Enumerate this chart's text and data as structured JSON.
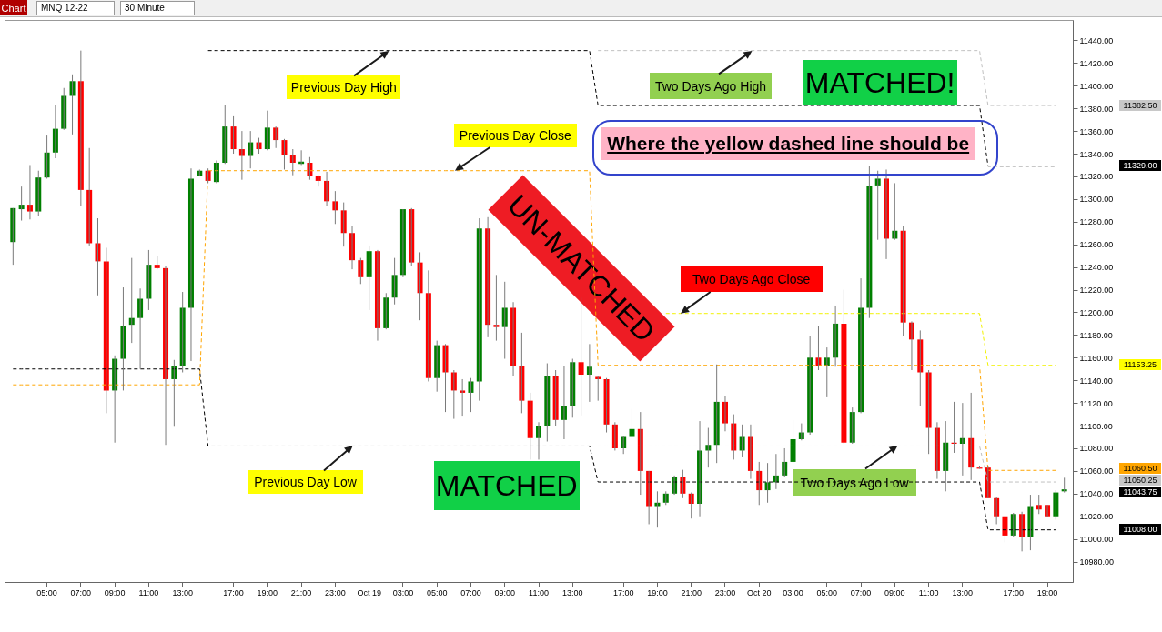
{
  "chart_data": {
    "type": "candlestick",
    "title": "MNQ 12-22",
    "subtitle": "30 Minute",
    "categories": [
      null,
      null,
      null,
      null,
      "05:00",
      null,
      null,
      null,
      "07:00",
      null,
      null,
      null,
      "09:00",
      null,
      null,
      null,
      "11:00",
      null,
      null,
      null,
      "13:00",
      null,
      null,
      null,
      null,
      null,
      "17:00",
      null,
      null,
      null,
      "19:00",
      null,
      null,
      null,
      "21:00",
      null,
      null,
      null,
      "23:00",
      null,
      null,
      null,
      "Oct 19",
      null,
      null,
      null,
      "03:00",
      null,
      null,
      null,
      "05:00",
      null,
      null,
      null,
      "07:00",
      null,
      null,
      null,
      "09:00",
      null,
      null,
      null,
      "11:00",
      null,
      null,
      null,
      "13:00",
      null,
      null,
      null,
      null,
      null,
      "17:00",
      null,
      null,
      null,
      "19:00",
      null,
      null,
      null,
      "21:00",
      null,
      null,
      null,
      "23:00",
      null,
      null,
      null,
      "Oct 20",
      null,
      null,
      null,
      "03:00",
      null,
      null,
      null,
      "05:00",
      null,
      null,
      null,
      "07:00",
      null,
      null,
      null,
      "09:00",
      null,
      null,
      null,
      "11:00",
      null,
      null,
      null,
      "13:00",
      null,
      null,
      null,
      null,
      null,
      "17:00",
      null,
      null,
      null,
      "19:00",
      null,
      null
    ],
    "ohlc": [
      [
        11262,
        11292,
        11242,
        11292
      ],
      [
        11291,
        11311,
        11281,
        11295
      ],
      [
        11295,
        11330,
        11282,
        11289
      ],
      [
        11289,
        11325,
        11285,
        11319
      ],
      [
        11319,
        11356,
        11318,
        11341
      ],
      [
        11341,
        11383,
        11336,
        11362
      ],
      [
        11362,
        11398,
        11361,
        11391
      ],
      [
        11391,
        11410,
        11357,
        11404
      ],
      [
        11404,
        11431,
        11294,
        11308
      ],
      [
        11308,
        11345,
        11259,
        11261
      ],
      [
        11261,
        11283,
        11215,
        11245
      ],
      [
        11245,
        11257,
        11111,
        11131
      ],
      [
        11131,
        11162,
        11085,
        11159
      ],
      [
        11159,
        11222,
        11131,
        11188
      ],
      [
        11189,
        11248,
        11173,
        11195
      ],
      [
        11195,
        11221,
        11150,
        11212
      ],
      [
        11212,
        11255,
        11202,
        11242
      ],
      [
        11242,
        11250,
        11238,
        11239
      ],
      [
        11239,
        11241,
        11083,
        11141
      ],
      [
        11141,
        11158,
        11099,
        11153
      ],
      [
        11153,
        11218,
        11147,
        11204
      ],
      [
        11204,
        11327,
        11157,
        11318
      ],
      [
        11320,
        11326,
        11320,
        11325
      ],
      [
        11325,
        11327,
        11314,
        11316
      ],
      [
        11315,
        11334,
        11314,
        11332
      ],
      [
        11332,
        11383,
        11331,
        11364
      ],
      [
        11364,
        11373,
        11340,
        11344
      ],
      [
        11344,
        11360,
        11317,
        11338
      ],
      [
        11338,
        11360,
        11327,
        11350
      ],
      [
        11350,
        11354,
        11340,
        11344
      ],
      [
        11344,
        11378,
        11343,
        11363
      ],
      [
        11363,
        11364,
        11345,
        11352
      ],
      [
        11352,
        11353,
        11326,
        11339
      ],
      [
        11339,
        11344,
        11321,
        11332
      ],
      [
        11331,
        11343,
        11330,
        11333
      ],
      [
        11332,
        11337,
        11317,
        11320
      ],
      [
        11320,
        11321,
        11311,
        11316
      ],
      [
        11316,
        11324,
        11294,
        11298
      ],
      [
        11298,
        11307,
        11278,
        11290
      ],
      [
        11290,
        11297,
        11258,
        11270
      ],
      [
        11270,
        11276,
        11238,
        11246
      ],
      [
        11246,
        11248,
        11225,
        11231
      ],
      [
        11231,
        11259,
        11202,
        11254
      ],
      [
        11254,
        11255,
        11175,
        11186
      ],
      [
        11186,
        11217,
        11185,
        11213
      ],
      [
        11213,
        11248,
        11207,
        11233
      ],
      [
        11233,
        11291,
        11231,
        11291
      ],
      [
        11291,
        11292,
        11241,
        11244
      ],
      [
        11244,
        11253,
        11193,
        11217
      ],
      [
        11217,
        11237,
        11139,
        11142
      ],
      [
        11142,
        11175,
        11130,
        11171
      ],
      [
        11171,
        11172,
        11112,
        11147
      ],
      [
        11147,
        11149,
        11106,
        11131
      ],
      [
        11131,
        11141,
        11108,
        11129
      ],
      [
        11129,
        11142,
        11112,
        11139
      ],
      [
        11139,
        11283,
        11122,
        11274
      ],
      [
        11274,
        11284,
        11178,
        11189
      ],
      [
        11189,
        11233,
        11175,
        11187
      ],
      [
        11187,
        11227,
        11159,
        11204
      ],
      [
        11204,
        11209,
        11144,
        11153
      ],
      [
        11153,
        11182,
        11111,
        11122
      ],
      [
        11122,
        11129,
        11070,
        11089
      ],
      [
        11089,
        11103,
        11070,
        11100
      ],
      [
        11100,
        11155,
        11086,
        11144
      ],
      [
        11144,
        11149,
        11100,
        11105
      ],
      [
        11105,
        11153,
        11088,
        11117
      ],
      [
        11117,
        11159,
        11107,
        11156
      ],
      [
        11156,
        11213,
        11109,
        11145
      ],
      [
        11145,
        11172,
        11121,
        11152
      ],
      [
        11143,
        11144,
        11122,
        11141
      ],
      [
        11141,
        11142,
        11094,
        11101
      ],
      [
        11101,
        11103,
        11078,
        11080
      ],
      [
        11080,
        11091,
        11075,
        11090
      ],
      [
        11090,
        11115,
        11088,
        11097
      ],
      [
        11097,
        11112,
        11039,
        11060
      ],
      [
        11060,
        11060,
        11013,
        11029
      ],
      [
        11029,
        11042,
        11010,
        11032
      ],
      [
        11032,
        11042,
        11030,
        11040
      ],
      [
        11040,
        11056,
        11039,
        11055
      ],
      [
        11055,
        11061,
        11036,
        11040
      ],
      [
        11040,
        11041,
        11018,
        11031
      ],
      [
        11031,
        11104,
        11020,
        11078
      ],
      [
        11078,
        11098,
        11063,
        11083
      ],
      [
        11083,
        11154,
        11067,
        11121
      ],
      [
        11121,
        11126,
        11095,
        11102
      ],
      [
        11102,
        11110,
        11070,
        11078
      ],
      [
        11078,
        11101,
        11072,
        11090
      ],
      [
        11090,
        11101,
        11053,
        11060
      ],
      [
        11060,
        11068,
        11030,
        11043
      ],
      [
        11043,
        11067,
        11032,
        11050
      ],
      [
        11050,
        11075,
        11044,
        11056
      ],
      [
        11056,
        11080,
        11055,
        11068
      ],
      [
        11068,
        11105,
        11067,
        11088
      ],
      [
        11088,
        11102,
        11087,
        11094
      ],
      [
        11094,
        11179,
        11092,
        11160
      ],
      [
        11160,
        11188,
        11149,
        11153
      ],
      [
        11153,
        11169,
        11125,
        11160
      ],
      [
        11160,
        11206,
        11152,
        11190
      ],
      [
        11190,
        11220,
        11084,
        11085
      ],
      [
        11085,
        11116,
        11084,
        11112
      ],
      [
        11112,
        11230,
        11111,
        11204
      ],
      [
        11204,
        11329,
        11195,
        11312
      ],
      [
        11312,
        11325,
        11264,
        11318
      ],
      [
        11318,
        11326,
        11247,
        11265
      ],
      [
        11265,
        11314,
        11264,
        11272
      ],
      [
        11272,
        11276,
        11179,
        11191
      ],
      [
        11191,
        11192,
        11149,
        11176
      ],
      [
        11176,
        11184,
        11117,
        11147
      ],
      [
        11147,
        11149,
        11075,
        11098
      ],
      [
        11098,
        11103,
        11053,
        11060
      ],
      [
        11060,
        11104,
        11042,
        11085
      ],
      [
        11085,
        11121,
        11076,
        11084
      ],
      [
        11084,
        11120,
        11056,
        11089
      ],
      [
        11089,
        11129,
        11052,
        11063
      ],
      [
        11063,
        11064,
        11062,
        11062
      ],
      [
        11063,
        11064,
        11036,
        11036
      ],
      [
        11036,
        11037,
        11013,
        11020
      ],
      [
        11020,
        11020,
        10997,
        11003
      ],
      [
        11003,
        11023,
        11002,
        11022
      ],
      [
        11022,
        11024,
        10989,
        11002
      ],
      [
        11002,
        11039,
        10990,
        11029
      ],
      [
        11030,
        11039,
        11022,
        11026
      ],
      [
        11030,
        11030,
        11019,
        11020
      ],
      [
        11020,
        11043,
        11017,
        11041
      ],
      [
        11042,
        11054,
        11041,
        11043.75
      ]
    ],
    "series": [
      {
        "type": "line",
        "color": "#000000",
        "values": [
          null,
          null,
          null,
          null,
          null,
          null,
          null,
          null,
          null,
          null,
          null,
          null,
          null,
          null,
          null,
          null,
          null,
          null,
          null,
          null,
          null,
          null,
          null,
          11431,
          11431,
          11431,
          11431,
          11431,
          11431,
          11431,
          11431,
          11431,
          11431,
          11431,
          11431,
          11431,
          11431,
          11431,
          11431,
          11431,
          11431,
          11431,
          11431,
          11431,
          11431,
          11431,
          11431,
          11431,
          11431,
          11431,
          11431,
          11431,
          11431,
          11431,
          11431,
          11431,
          11431,
          11431,
          11431,
          11431,
          11431,
          11431,
          11431,
          11431,
          11431,
          11431,
          11431,
          11431,
          11431,
          11382.5,
          11382.5,
          11382.5,
          11382.5,
          11382.5,
          11382.5,
          11382.5,
          11382.5,
          11382.5,
          11382.5,
          11382.5,
          11382.5,
          11382.5,
          11382.5,
          11382.5,
          11382.5,
          11382.5,
          11382.5,
          11382.5,
          11382.5,
          11382.5,
          11382.5,
          11382.5,
          11382.5,
          11382.5,
          11382.5,
          11382.5,
          11382.5,
          11382.5,
          11382.5,
          11382.5,
          11382.5,
          11382.5,
          11382.5,
          11382.5,
          11382.5,
          11382.5,
          11382.5,
          11382.5,
          11382.5,
          11382.5,
          11382.5,
          11382.5,
          11382.5,
          11382.5,
          11382.5,
          11329,
          11329,
          11329,
          11329,
          11329,
          11329,
          11329,
          11329,
          11329,
          null
        ]
      },
      {
        "type": "line",
        "color": "#000000",
        "values": [
          11150,
          11150,
          11150,
          11150,
          11150,
          11150,
          11150,
          11150,
          11150,
          11150,
          11150,
          11150,
          11150,
          11150,
          11150,
          11150,
          11150,
          11150,
          11150,
          11150,
          11150,
          11150,
          11150,
          11082,
          11082,
          11082,
          11082,
          11082,
          11082,
          11082,
          11082,
          11082,
          11082,
          11082,
          11082,
          11082,
          11082,
          11082,
          11082,
          11082,
          11082,
          11082,
          11082,
          11082,
          11082,
          11082,
          11082,
          11082,
          11082,
          11082,
          11082,
          11082,
          11082,
          11082,
          11082,
          11082,
          11082,
          11082,
          11082,
          11082,
          11082,
          11082,
          11082,
          11082,
          11082,
          11082,
          11082,
          11082,
          11082,
          11050.25,
          11050.25,
          11050.25,
          11050.25,
          11050.25,
          11050.25,
          11050.25,
          11050.25,
          11050.25,
          11050.25,
          11050.25,
          11050.25,
          11050.25,
          11050.25,
          11050.25,
          11050.25,
          11050.25,
          11050.25,
          11050.25,
          11050.25,
          11050.25,
          11050.25,
          11050.25,
          11050.25,
          11050.25,
          11050.25,
          11050.25,
          11050.25,
          11050.25,
          11050.25,
          11050.25,
          11050.25,
          11050.25,
          11050.25,
          11050.25,
          11050.25,
          11050.25,
          11050.25,
          11050.25,
          11050.25,
          11050.25,
          11050.25,
          11050.25,
          11050.25,
          11050.25,
          11050.25,
          11008,
          11008,
          11008,
          11008,
          11008,
          11008,
          11008,
          11008,
          11008,
          null
        ]
      },
      {
        "type": "line",
        "color": "#ffa500",
        "values": [
          11136,
          11136,
          11136,
          11136,
          11136,
          11136,
          11136,
          11136,
          11136,
          11136,
          11136,
          11136,
          11136,
          11136,
          11136,
          11136,
          11136,
          11136,
          11136,
          11136,
          11136,
          11136,
          11136,
          11325,
          11325,
          11325,
          11325,
          11325,
          11325,
          11325,
          11325,
          11325,
          11325,
          11325,
          11325,
          11325,
          11325,
          11325,
          11325,
          11325,
          11325,
          11325,
          11325,
          11325,
          11325,
          11325,
          11325,
          11325,
          11325,
          11325,
          11325,
          11325,
          11325,
          11325,
          11325,
          11325,
          11325,
          11325,
          11325,
          11325,
          11325,
          11325,
          11325,
          11325,
          11325,
          11325,
          11325,
          11325,
          11325,
          11153.25,
          11153.25,
          11153.25,
          11153.25,
          11153.25,
          11153.25,
          11153.25,
          11153.25,
          11153.25,
          11153.25,
          11153.25,
          11153.25,
          11153.25,
          11153.25,
          11153.25,
          11153.25,
          11153.25,
          11153.25,
          11153.25,
          11153.25,
          11153.25,
          11153.25,
          11153.25,
          11153.25,
          11153.25,
          11153.25,
          11153.25,
          11153.25,
          11153.25,
          11153.25,
          11153.25,
          11153.25,
          11153.25,
          11153.25,
          11153.25,
          11153.25,
          11153.25,
          11153.25,
          11153.25,
          11153.25,
          11153.25,
          11153.25,
          11153.25,
          11153.25,
          11153.25,
          11153.25,
          11060.5,
          11060.5,
          11060.5,
          11060.5,
          11060.5,
          11060.5,
          11060.5,
          11060.5,
          11060.5,
          null
        ]
      },
      {
        "type": "line",
        "color": "#f2f200",
        "values": [
          null,
          null,
          null,
          null,
          null,
          null,
          null,
          null,
          null,
          null,
          null,
          null,
          null,
          null,
          null,
          null,
          null,
          null,
          null,
          null,
          null,
          null,
          null,
          null,
          null,
          null,
          null,
          null,
          null,
          null,
          null,
          null,
          null,
          null,
          null,
          null,
          null,
          null,
          null,
          null,
          null,
          null,
          null,
          null,
          null,
          null,
          null,
          null,
          null,
          null,
          null,
          null,
          null,
          null,
          null,
          null,
          null,
          null,
          null,
          null,
          null,
          null,
          null,
          null,
          null,
          null,
          null,
          null,
          null,
          null,
          null,
          null,
          null,
          null,
          null,
          null,
          null,
          11199,
          11199,
          11199,
          11199,
          11199,
          11199,
          11199,
          11199,
          11199,
          11199,
          11199,
          11199,
          11199,
          11199,
          11199,
          11199,
          11199,
          11199,
          11199,
          11199,
          11199,
          11199,
          11199,
          11199,
          11199,
          11199,
          11199,
          11199,
          11199,
          11199,
          11199,
          11199,
          11199,
          11199,
          11199,
          11199,
          11199,
          11199,
          11153.25,
          11153.25,
          11153.25,
          11153.25,
          11153.25,
          11153.25,
          11153.25,
          11153.25,
          11153.25,
          null
        ]
      },
      {
        "type": "line",
        "color": "#c0c0c0",
        "values": [
          null,
          null,
          null,
          null,
          null,
          null,
          null,
          null,
          null,
          null,
          null,
          null,
          null,
          null,
          null,
          null,
          null,
          null,
          null,
          null,
          null,
          null,
          null,
          null,
          null,
          null,
          null,
          null,
          null,
          null,
          null,
          null,
          null,
          null,
          null,
          null,
          null,
          null,
          null,
          null,
          null,
          null,
          null,
          null,
          null,
          null,
          null,
          null,
          null,
          null,
          null,
          null,
          null,
          null,
          null,
          null,
          null,
          null,
          null,
          null,
          null,
          null,
          null,
          null,
          null,
          null,
          null,
          null,
          null,
          11431,
          11431,
          11431,
          11431,
          11431,
          11431,
          11431,
          11431,
          11431,
          11431,
          11431,
          11431,
          11431,
          11431,
          11431,
          11431,
          11431,
          11431,
          11431,
          11431,
          11431,
          11431,
          11431,
          11431,
          11431,
          11431,
          11431,
          11431,
          11431,
          11431,
          11431,
          11431,
          11431,
          11431,
          11431,
          11431,
          11431,
          11431,
          11431,
          11431,
          11431,
          11431,
          11431,
          11431,
          11431,
          11431,
          11382.5,
          11382.5,
          11382.5,
          11382.5,
          11382.5,
          11382.5,
          11382.5,
          11382.5,
          11382.5,
          null
        ]
      },
      {
        "type": "line",
        "color": "#c0c0c0",
        "values": [
          null,
          null,
          null,
          null,
          null,
          null,
          null,
          null,
          null,
          null,
          null,
          null,
          null,
          null,
          null,
          null,
          null,
          null,
          null,
          null,
          null,
          null,
          null,
          null,
          null,
          null,
          null,
          null,
          null,
          null,
          null,
          null,
          null,
          null,
          null,
          null,
          null,
          null,
          null,
          null,
          null,
          null,
          null,
          null,
          null,
          null,
          null,
          null,
          null,
          null,
          null,
          null,
          null,
          null,
          null,
          null,
          null,
          null,
          null,
          null,
          null,
          null,
          null,
          null,
          null,
          null,
          null,
          null,
          null,
          11082,
          11082,
          11082,
          11082,
          11082,
          11082,
          11082,
          11082,
          11082,
          11082,
          11082,
          11082,
          11082,
          11082,
          11082,
          11082,
          11082,
          11082,
          11082,
          11082,
          11082,
          11082,
          11082,
          11082,
          11082,
          11082,
          11082,
          11082,
          11082,
          11082,
          11082,
          11082,
          11082,
          11082,
          11082,
          11082,
          11082,
          11082,
          11082,
          11082,
          11082,
          11082,
          11082,
          11082,
          11082,
          11082,
          11050.25,
          11050.25,
          11050.25,
          11050.25,
          11050.25,
          11050.25,
          11050.25,
          11050.25,
          11050.25,
          null
        ]
      }
    ],
    "line_style": "dashed",
    "ylim": [
      10962,
      11458
    ],
    "yticks": [
      {
        "value": 10980,
        "label": "10980.00"
      },
      {
        "value": 11000,
        "label": "11000.00"
      },
      {
        "value": 11020,
        "label": "11020.00"
      },
      {
        "value": 11040,
        "label": "11040.00"
      },
      {
        "value": 11060,
        "label": "11060.00"
      },
      {
        "value": 11080,
        "label": "11080.00"
      },
      {
        "value": 11100,
        "label": "11100.00"
      },
      {
        "value": 11120,
        "label": "11120.00"
      },
      {
        "value": 11140,
        "label": "11140.00"
      },
      {
        "value": 11160,
        "label": "11160.00"
      },
      {
        "value": 11180,
        "label": "11180.00"
      },
      {
        "value": 11200,
        "label": "11200.00"
      },
      {
        "value": 11220,
        "label": "11220.00"
      },
      {
        "value": 11240,
        "label": "11240.00"
      },
      {
        "value": 11260,
        "label": "11260.00"
      },
      {
        "value": 11280,
        "label": "11280.00"
      },
      {
        "value": 11300,
        "label": "11300.00"
      },
      {
        "value": 11320,
        "label": "11320.00"
      },
      {
        "value": 11340,
        "label": "11340.00"
      },
      {
        "value": 11360,
        "label": "11360.00"
      },
      {
        "value": 11380,
        "label": "11380.00"
      },
      {
        "value": 11400,
        "label": "11400.00"
      },
      {
        "value": 11420,
        "label": "11420.00"
      },
      {
        "value": 11440,
        "label": "11440.00"
      }
    ],
    "annotations": [
      {
        "text": "Previous Day High",
        "y": 11431
      },
      {
        "text": "Previous Day Close",
        "y": 11325
      },
      {
        "text": "Previous Day Low",
        "y": 11082
      },
      {
        "text": "Two Days Ago High",
        "y": 11431
      },
      {
        "text": "Two Days Ago Close",
        "y": 11199
      },
      {
        "text": "Two Days Ago Low",
        "y": 11082
      },
      "MATCHED!",
      "MATCHED",
      "UN-MATCHED",
      "Where the yellow dashed line should be",
      "11382.50",
      "11329.00",
      "11153.25",
      "11060.50",
      "11050.25",
      "11043.75",
      "11008.00",
      "Chart"
    ]
  }
}
